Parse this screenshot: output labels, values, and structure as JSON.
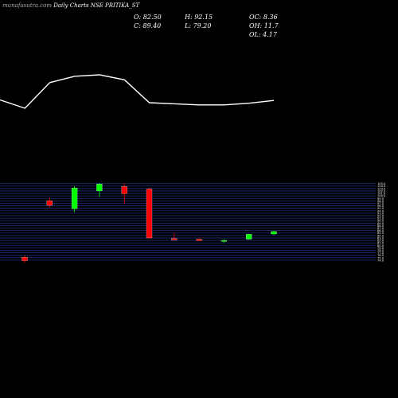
{
  "header": {
    "brand": "munafasutra.com",
    "title": "Daily Charts NSE PRITIKA_ST",
    "o": "O: 82.50",
    "h": "H: 92.15",
    "oc": "OC: 8.36",
    "c": "C: 89.40",
    "l": "L: 79.20",
    "oh": "OH: 11.7",
    "ol": "OL: 4.17"
  },
  "colors": {
    "background": "#000000",
    "up": "#00ff00",
    "down": "#ff0000",
    "grid": "#1a2f7a",
    "line": "#ffffff",
    "axis_text": "#ffffff"
  },
  "chart_data": {
    "type": "candlestick",
    "indicator_line": [
      0.3,
      0.0,
      0.92,
      1.15,
      1.2,
      1.02,
      0.2,
      0.16,
      0.12,
      0.12,
      0.18,
      0.28
    ],
    "candles": [
      {
        "open": 75.2,
        "close": 73.8,
        "high": 76.0,
        "low": 73.0,
        "color": "down"
      },
      {
        "open": 98.0,
        "close": 96.2,
        "high": 99.5,
        "low": 95.3,
        "color": "down"
      },
      {
        "open": 94.8,
        "close": 103.2,
        "high": 104.0,
        "low": 93.5,
        "color": "up"
      },
      {
        "open": 102.0,
        "close": 104.8,
        "high": 105.2,
        "low": 99.6,
        "color": "up"
      },
      {
        "open": 103.8,
        "close": 100.9,
        "high": 105.0,
        "low": 96.8,
        "color": "down"
      },
      {
        "open": 102.8,
        "close": 83.0,
        "high": 103.2,
        "low": 82.8,
        "color": "down"
      },
      {
        "open": 82.8,
        "close": 82.2,
        "high": 85.0,
        "low": 82.0,
        "color": "down"
      },
      {
        "open": 82.5,
        "close": 81.9,
        "high": 82.8,
        "low": 81.7,
        "color": "down"
      },
      {
        "open": 81.6,
        "close": 82.0,
        "high": 82.4,
        "low": 81.1,
        "color": "up"
      },
      {
        "open": 82.5,
        "close": 84.5,
        "high": 84.7,
        "low": 82.4,
        "color": "up"
      },
      {
        "open": 84.6,
        "close": 85.6,
        "high": 86.0,
        "low": 84.2,
        "color": "up"
      }
    ],
    "y_ticks": [
      74.0,
      75.0,
      76.0,
      77.0,
      78.0,
      79.0,
      80.0,
      81.0,
      82.0,
      83.0,
      84.0,
      85.0,
      86.0,
      87.0,
      88.0,
      89.0,
      90.0,
      91.0,
      92.0,
      93.0,
      94.0,
      95.0,
      96.0,
      97.0,
      98.0,
      99.0,
      100.0,
      101.0,
      102.0,
      103.0,
      104.0,
      105.0
    ],
    "y_range": [
      73.0,
      105.2
    ]
  }
}
